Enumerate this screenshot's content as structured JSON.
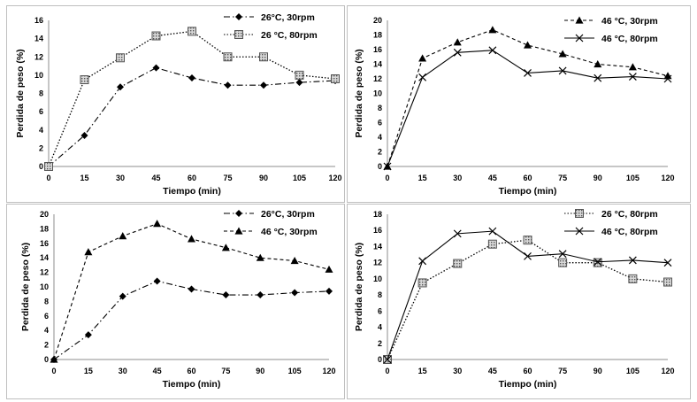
{
  "chart_data": [
    {
      "type": "line",
      "xlabel": "Tiempo (min)",
      "ylabel": "Perdida de peso (%)",
      "x": [
        0,
        15,
        30,
        45,
        60,
        75,
        90,
        105,
        120
      ],
      "xticks": [
        "0",
        "15",
        "30",
        "45",
        "60",
        "75",
        "90",
        "105",
        "120"
      ],
      "ylim": [
        0,
        16
      ],
      "yticks": [
        "0",
        "2",
        "4",
        "6",
        "8",
        "10",
        "12",
        "14",
        "16"
      ],
      "grid": false,
      "legend": "top-right",
      "series": [
        {
          "name": "26°C, 30rpm",
          "marker": "diamond",
          "dash": "dashdot",
          "values": [
            0,
            3.4,
            8.7,
            10.8,
            9.7,
            8.9,
            8.9,
            9.2,
            9.4
          ]
        },
        {
          "name": "26 °C, 80rpm",
          "marker": "square-hatched",
          "dash": "dotted",
          "values": [
            0,
            9.5,
            11.9,
            14.3,
            14.8,
            12.0,
            12.0,
            10.0,
            9.6
          ]
        }
      ]
    },
    {
      "type": "line",
      "xlabel": "Tiempo (min)",
      "ylabel": "Perdida de peso (%)",
      "x": [
        0,
        15,
        30,
        45,
        60,
        75,
        90,
        105,
        120
      ],
      "xticks": [
        "0",
        "15",
        "30",
        "45",
        "60",
        "75",
        "90",
        "105",
        "120"
      ],
      "ylim": [
        0,
        20
      ],
      "yticks": [
        "0",
        "2",
        "4",
        "6",
        "8",
        "10",
        "12",
        "14",
        "16",
        "18",
        "20"
      ],
      "grid": false,
      "legend": "top-right",
      "series": [
        {
          "name": "46 °C, 30rpm",
          "marker": "triangle",
          "dash": "dashed",
          "values": [
            0,
            14.8,
            17.0,
            18.7,
            16.6,
            15.4,
            14.0,
            13.6,
            12.4
          ]
        },
        {
          "name": "46 °C, 80rpm",
          "marker": "x",
          "dash": "solid",
          "values": [
            0,
            12.2,
            15.6,
            15.9,
            12.8,
            13.1,
            12.1,
            12.3,
            12.0
          ]
        }
      ]
    },
    {
      "type": "line",
      "xlabel": "Tiempo (min)",
      "ylabel": "Perdida de peso (%)",
      "x": [
        0,
        15,
        30,
        45,
        60,
        75,
        90,
        105,
        120
      ],
      "xticks": [
        "0",
        "15",
        "30",
        "45",
        "60",
        "75",
        "90",
        "105",
        "120"
      ],
      "ylim": [
        0,
        20
      ],
      "yticks": [
        "0",
        "2",
        "4",
        "6",
        "8",
        "10",
        "12",
        "14",
        "16",
        "18",
        "20"
      ],
      "grid": false,
      "legend": "top-right",
      "series": [
        {
          "name": "26°C, 30rpm",
          "marker": "diamond",
          "dash": "dashdot",
          "values": [
            0,
            3.4,
            8.7,
            10.8,
            9.7,
            8.9,
            8.9,
            9.2,
            9.4
          ]
        },
        {
          "name": "46 °C, 30rpm",
          "marker": "triangle",
          "dash": "dashed",
          "values": [
            0,
            14.8,
            17.0,
            18.7,
            16.6,
            15.4,
            14.0,
            13.6,
            12.4
          ]
        }
      ]
    },
    {
      "type": "line",
      "xlabel": "Tiempo (min)",
      "ylabel": "Perdida de peso (%)",
      "x": [
        0,
        15,
        30,
        45,
        60,
        75,
        90,
        105,
        120
      ],
      "xticks": [
        "0",
        "15",
        "30",
        "45",
        "60",
        "75",
        "90",
        "105",
        "120"
      ],
      "ylim": [
        0,
        18
      ],
      "yticks": [
        "0",
        "2",
        "4",
        "6",
        "8",
        "10",
        "12",
        "14",
        "16",
        "18"
      ],
      "grid": false,
      "legend": "top-right",
      "series": [
        {
          "name": "26 °C, 80rpm",
          "marker": "square-hatched",
          "dash": "dotted",
          "values": [
            0,
            9.5,
            11.9,
            14.3,
            14.8,
            12.0,
            12.0,
            10.0,
            9.6
          ]
        },
        {
          "name": "46 °C, 80rpm",
          "marker": "x",
          "dash": "solid",
          "values": [
            0,
            12.2,
            15.6,
            15.9,
            12.8,
            13.1,
            12.1,
            12.3,
            12.0
          ]
        }
      ]
    }
  ]
}
